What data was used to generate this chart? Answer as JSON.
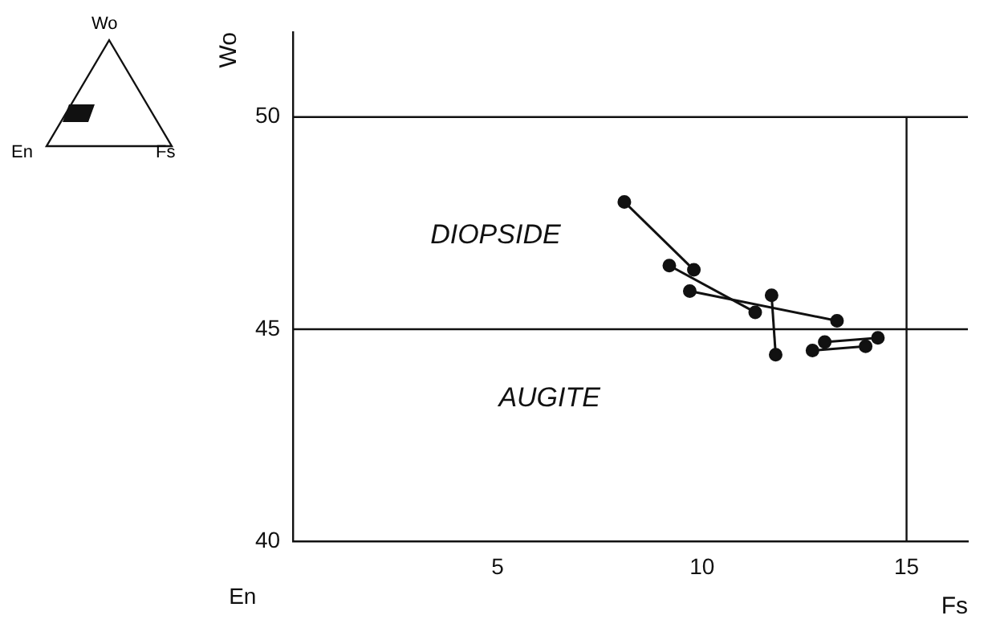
{
  "chart_data": {
    "type": "line",
    "xlabel": "Fs",
    "ylabel": "Wo",
    "xlim": [
      0,
      16.5
    ],
    "xticks": [
      5,
      10,
      15
    ],
    "ylim": [
      40,
      52
    ],
    "yticks": [
      40,
      45,
      50
    ],
    "grid": false,
    "legend": false,
    "marker": "circle",
    "line_style": "solid",
    "series": [
      {
        "color": "#111111",
        "x": [
          8.1,
          9.8
        ],
        "values": [
          48.0,
          46.4
        ]
      },
      {
        "color": "#111111",
        "x": [
          9.2,
          11.3
        ],
        "values": [
          46.5,
          45.4
        ]
      },
      {
        "color": "#111111",
        "x": [
          9.7,
          13.3
        ],
        "values": [
          45.9,
          45.2
        ]
      },
      {
        "color": "#111111",
        "x": [
          11.7,
          11.8
        ],
        "values": [
          45.8,
          44.4
        ]
      },
      {
        "color": "#111111",
        "x": [
          13.0,
          14.3
        ],
        "values": [
          44.7,
          44.8
        ]
      },
      {
        "color": "#111111",
        "x": [
          12.7,
          14.0
        ],
        "values": [
          44.5,
          44.6
        ]
      }
    ],
    "ref_lines": [
      {
        "axis": "y",
        "value": 45
      },
      {
        "axis": "y",
        "value": 50
      },
      {
        "axis": "x",
        "value": 15
      }
    ],
    "annotations": [
      "DIOPSIDE",
      "AUGITE",
      "En",
      "Wo",
      "En",
      "Fs"
    ]
  }
}
